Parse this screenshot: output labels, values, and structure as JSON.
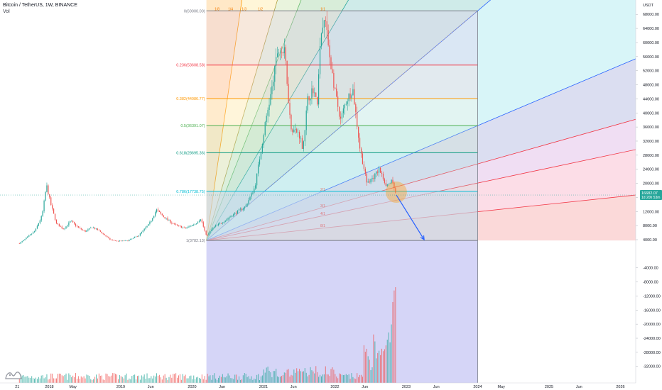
{
  "header": {
    "title": "Bitcoin / TetherUS, 1W, BINANCE",
    "volume_label": "Vol"
  },
  "colors": {
    "up": "#26a69a",
    "down": "#ef5350",
    "accent": "#2962ff",
    "fib_red": "#f23645",
    "fib_orange": "#ff9800",
    "fib_green": "#089981",
    "vol_bg": "#b3b3f0"
  },
  "logo": {
    "icon": "tradingview-logo-icon"
  },
  "chart_data": {
    "type": "candlestick",
    "title": "Bitcoin / TetherUS, 1W, BINANCE",
    "yaxis_unit": "USDT",
    "ylim": [
      -34000,
      72000
    ],
    "y_ticks": [
      68000,
      64000,
      60000,
      56000,
      52000,
      48000,
      44000,
      40000,
      36000,
      32000,
      28000,
      24000,
      20000,
      16000,
      12000,
      8000,
      4000,
      -4000,
      -8000,
      -12000,
      -16000,
      -20000,
      -24000,
      -28000,
      -32000
    ],
    "y_tick_labels": [
      "68000.00",
      "64000.00",
      "60000.00",
      "56000.00",
      "52000.00",
      "48000.00",
      "44000.00",
      "40000.00",
      "36000.00",
      "32000.00",
      "28000.00",
      "24000.00",
      "20000.00",
      "16000.00",
      "12000.00",
      "8000.00",
      "4000.00",
      "-4000.00",
      "-8000.00",
      "-12000.00",
      "-16000.00",
      "-20000.00",
      "-24000.00",
      "-28000.00",
      "-32000.00"
    ],
    "x_ticks": [
      {
        "label": "21",
        "t": 2017.55
      },
      {
        "label": "2018",
        "t": 2018.0
      },
      {
        "label": "May",
        "t": 2018.33
      },
      {
        "label": "2019",
        "t": 2019.0
      },
      {
        "label": "Jun",
        "t": 2019.42
      },
      {
        "label": "2020",
        "t": 2020.0
      },
      {
        "label": "Jun",
        "t": 2020.42
      },
      {
        "label": "2021",
        "t": 2021.0
      },
      {
        "label": "Jun",
        "t": 2021.42
      },
      {
        "label": "2022",
        "t": 2022.0
      },
      {
        "label": "Jun",
        "t": 2022.42
      },
      {
        "label": "2023",
        "t": 2023.0
      },
      {
        "label": "Jun",
        "t": 2023.42
      },
      {
        "label": "2024",
        "t": 2024.0
      },
      {
        "label": "May",
        "t": 2024.33
      },
      {
        "label": "2025",
        "t": 2025.0
      },
      {
        "label": "Jun",
        "t": 2025.42
      },
      {
        "label": "2026",
        "t": 2026.0
      }
    ],
    "price_path": [
      [
        2017.55,
        2500
      ],
      [
        2017.65,
        4000
      ],
      [
        2017.8,
        6500
      ],
      [
        2017.9,
        11000
      ],
      [
        2017.96,
        19500
      ],
      [
        2018.02,
        14000
      ],
      [
        2018.1,
        8500
      ],
      [
        2018.2,
        7000
      ],
      [
        2018.3,
        9300
      ],
      [
        2018.4,
        7500
      ],
      [
        2018.5,
        6300
      ],
      [
        2018.6,
        7500
      ],
      [
        2018.7,
        6500
      ],
      [
        2018.85,
        4000
      ],
      [
        2018.95,
        3600
      ],
      [
        2019.1,
        3700
      ],
      [
        2019.25,
        5200
      ],
      [
        2019.4,
        8500
      ],
      [
        2019.5,
        12500
      ],
      [
        2019.6,
        10500
      ],
      [
        2019.75,
        8300
      ],
      [
        2019.9,
        7200
      ],
      [
        2020.05,
        8600
      ],
      [
        2020.12,
        10000
      ],
      [
        2020.2,
        5000
      ],
      [
        2020.3,
        7500
      ],
      [
        2020.45,
        9300
      ],
      [
        2020.6,
        11500
      ],
      [
        2020.75,
        13500
      ],
      [
        2020.88,
        19000
      ],
      [
        2020.96,
        29000
      ],
      [
        2021.05,
        40000
      ],
      [
        2021.12,
        47000
      ],
      [
        2021.2,
        58000
      ],
      [
        2021.3,
        57000
      ],
      [
        2021.38,
        36000
      ],
      [
        2021.5,
        34000
      ],
      [
        2021.55,
        30000
      ],
      [
        2021.62,
        44000
      ],
      [
        2021.7,
        47000
      ],
      [
        2021.75,
        42000
      ],
      [
        2021.8,
        61000
      ],
      [
        2021.86,
        67000
      ],
      [
        2021.92,
        57000
      ],
      [
        2022.0,
        46000
      ],
      [
        2022.08,
        38000
      ],
      [
        2022.15,
        43000
      ],
      [
        2022.25,
        47000
      ],
      [
        2022.35,
        30000
      ],
      [
        2022.45,
        20000
      ],
      [
        2022.55,
        22000
      ],
      [
        2022.62,
        24000
      ],
      [
        2022.72,
        19500
      ],
      [
        2022.8,
        20500
      ],
      [
        2022.86,
        16500
      ]
    ],
    "current_price": {
      "value": 16682.07,
      "label": "16682.07",
      "sub_label": "1d 20h 53m"
    },
    "fib_levels": [
      {
        "ratio": 0,
        "price": 69000,
        "label": "0(69000.00)",
        "color": "#787b86"
      },
      {
        "ratio": 0.236,
        "price": 53608.58,
        "label": "0.236(53608.58)",
        "color": "#f23645"
      },
      {
        "ratio": 0.382,
        "price": 44086.77,
        "label": "0.382(44086.77)",
        "color": "#ff9800"
      },
      {
        "ratio": 0.5,
        "price": 36391.07,
        "label": "0.5(36391.07)",
        "color": "#4caf50"
      },
      {
        "ratio": 0.618,
        "price": 28695.36,
        "label": "0.618(28695.36)",
        "color": "#089981"
      },
      {
        "ratio": 0.786,
        "price": 17738.75,
        "label": "0.786(17738.75)",
        "color": "#00bcd4"
      },
      {
        "ratio": 1,
        "price": 3782.13,
        "label": "1(3782.13)",
        "color": "#787b86"
      }
    ],
    "fan_origin": {
      "t": 2020.2,
      "price": 3782.13
    },
    "fan_box_end": {
      "t": 2024.0,
      "price": 69000
    },
    "fan_ratio_labels_top": [
      "1/8",
      "1/4",
      "1/3",
      "1/2",
      "1/1"
    ],
    "fan_ratio_labels_side": [
      "2/1",
      "3/1",
      "4/1",
      "8/1"
    ],
    "projection_arrow": {
      "from": {
        "t": 2022.86,
        "price": 16700
      },
      "to": {
        "t": 2023.25,
        "price": 4000
      }
    },
    "highlight_circle": {
      "t": 2022.86,
      "price": 17500
    },
    "volume_note": "volume histogram drawn in lower pane"
  }
}
